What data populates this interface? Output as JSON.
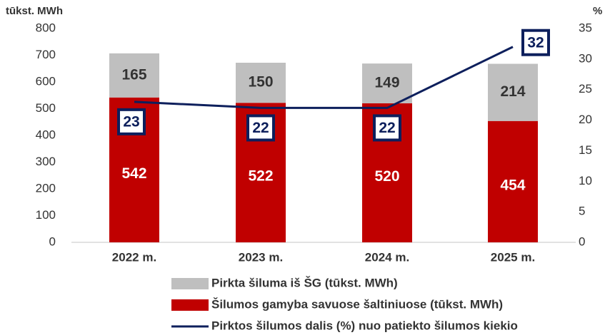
{
  "chart_data": {
    "type": "bar",
    "ylabel": "tūkst. MWh",
    "y2label": "%",
    "categories": [
      "2022 m.",
      "2023 m.",
      "2024 m.",
      "2025 m."
    ],
    "series": [
      {
        "name": "Šilumos gamyba savuose šaltiniuose (tūkst. MWh)",
        "color": "#c00000",
        "values": [
          542,
          522,
          520,
          454
        ]
      },
      {
        "name": "Pirkta šiluma iš ŠG (tūkst. MWh)",
        "color": "#bfbfbf",
        "values": [
          165,
          150,
          149,
          214
        ]
      },
      {
        "name": "Pirktos šilumos dalis (%) nuo patiekto šilumos kiekio",
        "color": "#0d1f5c",
        "type": "line",
        "axis": "y2",
        "values": [
          23,
          22,
          22,
          32
        ]
      }
    ],
    "ylim": [
      0,
      800
    ],
    "yticks": [
      0,
      100,
      200,
      300,
      400,
      500,
      600,
      700,
      800
    ],
    "y2lim": [
      0,
      35
    ],
    "y2ticks": [
      0,
      5,
      10,
      15,
      20,
      25,
      30,
      35
    ]
  }
}
